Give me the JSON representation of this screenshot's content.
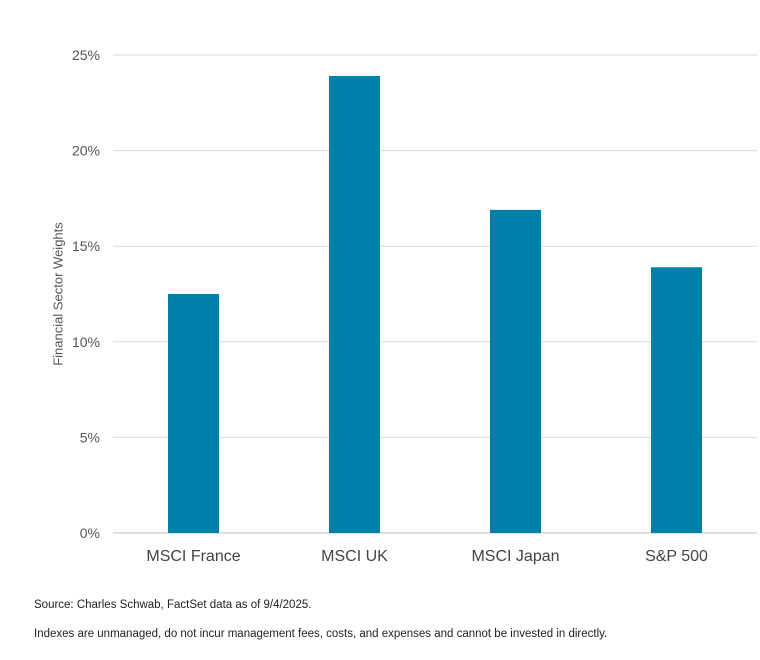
{
  "chart_data": {
    "type": "bar",
    "title": "",
    "xlabel": "",
    "ylabel": "Financial Sector Weights",
    "categories": [
      "MSCI France",
      "MSCI UK",
      "MSCI Japan",
      "S&P 500"
    ],
    "values": [
      12.5,
      23.9,
      16.9,
      13.9
    ],
    "ylim": [
      0,
      25
    ],
    "yticks": [
      0,
      5,
      10,
      15,
      20,
      25
    ],
    "ytick_labels": [
      "0%",
      "5%",
      "10%",
      "15%",
      "20%",
      "25%"
    ],
    "grid": true,
    "bar_color": "#0080A8",
    "grid_color": "#D9D9D9"
  },
  "footnotes": {
    "source": "Source: Charles Schwab, FactSet data as of 9/4/2025.",
    "disclaimer": "Indexes are unmanaged, do not incur management fees, costs, and expenses and cannot be invested in directly."
  }
}
